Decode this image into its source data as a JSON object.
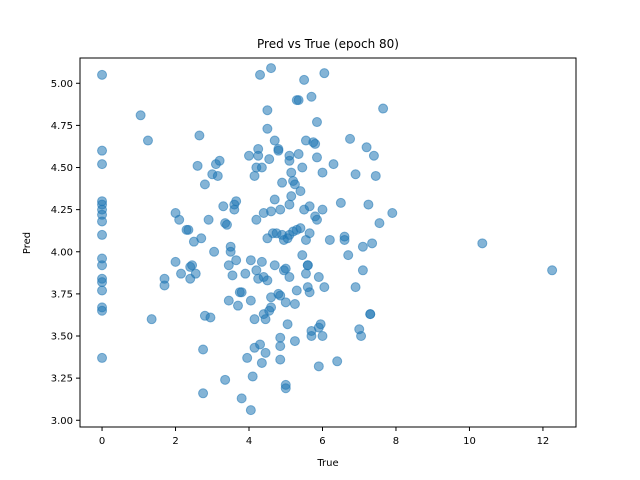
{
  "chart_data": {
    "type": "scatter",
    "title": "Pred vs True (epoch 80)",
    "xlabel": "True",
    "ylabel": "Pred",
    "xlim": [
      -0.6,
      12.9
    ],
    "ylim": [
      2.96,
      5.15
    ],
    "xticks": [
      0,
      2,
      4,
      6,
      8,
      10,
      12
    ],
    "yticks": [
      3.0,
      3.25,
      3.5,
      3.75,
      4.0,
      4.25,
      4.5,
      4.75,
      5.0
    ],
    "ytick_labels": [
      "3.00",
      "3.25",
      "3.50",
      "3.75",
      "4.00",
      "4.25",
      "4.50",
      "4.75",
      "5.00"
    ],
    "grid": false,
    "point_color": "#1f77b4",
    "point_opacity": 0.55,
    "points": [
      [
        0.0,
        5.05
      ],
      [
        0.0,
        4.6
      ],
      [
        0.0,
        4.52
      ],
      [
        0.0,
        4.3
      ],
      [
        0.0,
        4.28
      ],
      [
        0.0,
        4.25
      ],
      [
        0.0,
        4.22
      ],
      [
        0.0,
        4.18
      ],
      [
        0.0,
        4.1
      ],
      [
        0.0,
        3.96
      ],
      [
        0.0,
        3.92
      ],
      [
        0.0,
        3.84
      ],
      [
        0.0,
        3.82
      ],
      [
        0.0,
        3.77
      ],
      [
        0.0,
        3.67
      ],
      [
        0.0,
        3.65
      ],
      [
        0.0,
        3.37
      ],
      [
        1.05,
        4.81
      ],
      [
        1.25,
        4.66
      ],
      [
        1.35,
        3.6
      ],
      [
        1.7,
        3.84
      ],
      [
        1.7,
        3.8
      ],
      [
        2.0,
        4.23
      ],
      [
        2.0,
        3.94
      ],
      [
        2.1,
        4.19
      ],
      [
        2.15,
        3.87
      ],
      [
        2.3,
        4.13
      ],
      [
        2.35,
        4.13
      ],
      [
        2.4,
        3.91
      ],
      [
        2.45,
        3.92
      ],
      [
        2.4,
        3.84
      ],
      [
        2.5,
        4.06
      ],
      [
        2.55,
        3.87
      ],
      [
        2.6,
        4.51
      ],
      [
        2.65,
        4.69
      ],
      [
        2.7,
        4.08
      ],
      [
        2.75,
        3.42
      ],
      [
        2.75,
        3.16
      ],
      [
        2.8,
        4.4
      ],
      [
        2.8,
        3.62
      ],
      [
        2.9,
        4.19
      ],
      [
        2.95,
        3.61
      ],
      [
        3.0,
        4.46
      ],
      [
        3.05,
        4.0
      ],
      [
        3.1,
        4.52
      ],
      [
        3.15,
        4.45
      ],
      [
        3.2,
        4.54
      ],
      [
        3.3,
        4.27
      ],
      [
        3.35,
        4.17
      ],
      [
        3.35,
        3.24
      ],
      [
        3.4,
        4.16
      ],
      [
        3.45,
        3.92
      ],
      [
        3.45,
        3.71
      ],
      [
        3.5,
        4.03
      ],
      [
        3.5,
        4.0
      ],
      [
        3.55,
        3.86
      ],
      [
        3.6,
        4.28
      ],
      [
        3.6,
        4.25
      ],
      [
        3.65,
        4.3
      ],
      [
        3.65,
        3.95
      ],
      [
        3.7,
        3.68
      ],
      [
        3.75,
        3.76
      ],
      [
        3.8,
        3.76
      ],
      [
        3.8,
        3.13
      ],
      [
        3.9,
        3.87
      ],
      [
        3.95,
        3.37
      ],
      [
        4.0,
        4.57
      ],
      [
        4.05,
        3.95
      ],
      [
        4.05,
        3.71
      ],
      [
        4.05,
        3.06
      ],
      [
        4.1,
        3.26
      ],
      [
        4.15,
        4.45
      ],
      [
        4.15,
        3.6
      ],
      [
        4.15,
        3.43
      ],
      [
        4.2,
        4.5
      ],
      [
        4.2,
        4.19
      ],
      [
        4.2,
        3.89
      ],
      [
        4.25,
        4.57
      ],
      [
        4.25,
        4.61
      ],
      [
        4.25,
        3.84
      ],
      [
        4.3,
        5.05
      ],
      [
        4.3,
        3.45
      ],
      [
        4.35,
        4.5
      ],
      [
        4.35,
        3.94
      ],
      [
        4.35,
        3.34
      ],
      [
        4.4,
        4.23
      ],
      [
        4.4,
        3.85
      ],
      [
        4.4,
        3.63
      ],
      [
        4.45,
        3.6
      ],
      [
        4.45,
        3.4
      ],
      [
        4.5,
        4.84
      ],
      [
        4.5,
        4.73
      ],
      [
        4.5,
        4.08
      ],
      [
        4.5,
        3.83
      ],
      [
        4.55,
        4.55
      ],
      [
        4.55,
        3.65
      ],
      [
        4.6,
        5.09
      ],
      [
        4.6,
        4.24
      ],
      [
        4.6,
        3.73
      ],
      [
        4.6,
        3.67
      ],
      [
        4.65,
        4.11
      ],
      [
        4.7,
        4.66
      ],
      [
        4.7,
        4.31
      ],
      [
        4.7,
        3.92
      ],
      [
        4.75,
        4.11
      ],
      [
        4.8,
        4.61
      ],
      [
        4.8,
        4.6
      ],
      [
        4.8,
        3.75
      ],
      [
        4.85,
        4.25
      ],
      [
        4.85,
        3.74
      ],
      [
        4.85,
        3.49
      ],
      [
        4.85,
        3.44
      ],
      [
        4.85,
        3.36
      ],
      [
        4.9,
        4.41
      ],
      [
        4.9,
        4.1
      ],
      [
        4.95,
        4.07
      ],
      [
        4.95,
        3.89
      ],
      [
        5.0,
        3.9
      ],
      [
        5.0,
        3.7
      ],
      [
        5.0,
        3.21
      ],
      [
        5.0,
        3.19
      ],
      [
        5.05,
        4.08
      ],
      [
        5.05,
        3.57
      ],
      [
        5.1,
        4.57
      ],
      [
        5.1,
        4.54
      ],
      [
        5.1,
        4.28
      ],
      [
        5.1,
        4.1
      ],
      [
        5.1,
        3.85
      ],
      [
        5.15,
        4.47
      ],
      [
        5.15,
        4.33
      ],
      [
        5.2,
        4.42
      ],
      [
        5.2,
        4.12
      ],
      [
        5.25,
        4.4
      ],
      [
        5.25,
        3.69
      ],
      [
        5.25,
        3.47
      ],
      [
        5.3,
        4.9
      ],
      [
        5.3,
        4.13
      ],
      [
        5.3,
        3.77
      ],
      [
        5.35,
        4.9
      ],
      [
        5.35,
        4.58
      ],
      [
        5.4,
        4.36
      ],
      [
        5.4,
        4.14
      ],
      [
        5.45,
        4.5
      ],
      [
        5.45,
        3.98
      ],
      [
        5.5,
        5.02
      ],
      [
        5.5,
        4.25
      ],
      [
        5.55,
        4.66
      ],
      [
        5.55,
        4.07
      ],
      [
        5.55,
        3.87
      ],
      [
        5.6,
        3.92
      ],
      [
        5.6,
        3.92
      ],
      [
        5.6,
        3.79
      ],
      [
        5.65,
        4.27
      ],
      [
        5.65,
        4.11
      ],
      [
        5.65,
        3.76
      ],
      [
        5.7,
        4.92
      ],
      [
        5.7,
        3.53
      ],
      [
        5.7,
        3.5
      ],
      [
        5.75,
        4.65
      ],
      [
        5.8,
        4.64
      ],
      [
        5.8,
        4.21
      ],
      [
        5.85,
        4.77
      ],
      [
        5.85,
        4.56
      ],
      [
        5.85,
        4.19
      ],
      [
        5.9,
        3.85
      ],
      [
        5.9,
        3.55
      ],
      [
        5.9,
        3.32
      ],
      [
        5.95,
        3.57
      ],
      [
        6.0,
        4.25
      ],
      [
        6.0,
        4.47
      ],
      [
        6.0,
        3.5
      ],
      [
        6.05,
        5.06
      ],
      [
        6.05,
        3.79
      ],
      [
        6.2,
        4.07
      ],
      [
        6.3,
        4.52
      ],
      [
        6.4,
        3.35
      ],
      [
        6.5,
        4.29
      ],
      [
        6.6,
        4.09
      ],
      [
        6.6,
        4.07
      ],
      [
        6.7,
        3.98
      ],
      [
        6.75,
        4.67
      ],
      [
        6.9,
        4.46
      ],
      [
        6.9,
        3.79
      ],
      [
        7.0,
        3.54
      ],
      [
        7.05,
        3.5
      ],
      [
        7.1,
        4.03
      ],
      [
        7.1,
        3.89
      ],
      [
        7.2,
        4.62
      ],
      [
        7.25,
        4.28
      ],
      [
        7.3,
        3.63
      ],
      [
        7.3,
        3.63
      ],
      [
        7.35,
        4.05
      ],
      [
        7.4,
        4.57
      ],
      [
        7.45,
        4.45
      ],
      [
        7.55,
        4.17
      ],
      [
        7.65,
        4.85
      ],
      [
        7.9,
        4.23
      ],
      [
        10.35,
        4.05
      ],
      [
        12.25,
        3.89
      ]
    ]
  }
}
